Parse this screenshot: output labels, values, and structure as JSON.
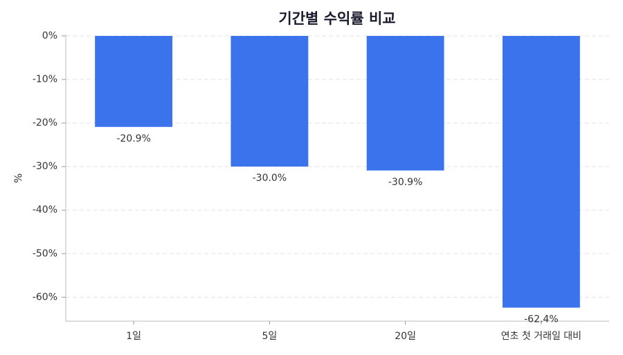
{
  "chart_data": {
    "type": "bar",
    "title": "기간별 수익률 비교",
    "y_label": "%",
    "categories": [
      "1일",
      "5일",
      "20일",
      "연초 첫 거래일 대비"
    ],
    "values": [
      -20.9,
      -30.0,
      -30.9,
      -62.4
    ],
    "value_labels": [
      "-20.9%",
      "-30.0%",
      "-30.9%",
      "-62.4%"
    ],
    "color": "#3b73ed",
    "ylim": [
      -65.5,
      0
    ],
    "yticks": [
      {
        "value": 0,
        "label": "0%"
      },
      {
        "value": -10,
        "label": "-10%"
      },
      {
        "value": -20,
        "label": "-20%"
      },
      {
        "value": -30,
        "label": "-30%"
      },
      {
        "value": -40,
        "label": "-40%"
      },
      {
        "value": -50,
        "label": "-50%"
      },
      {
        "value": -60,
        "label": "-60%"
      }
    ],
    "grid": true
  }
}
